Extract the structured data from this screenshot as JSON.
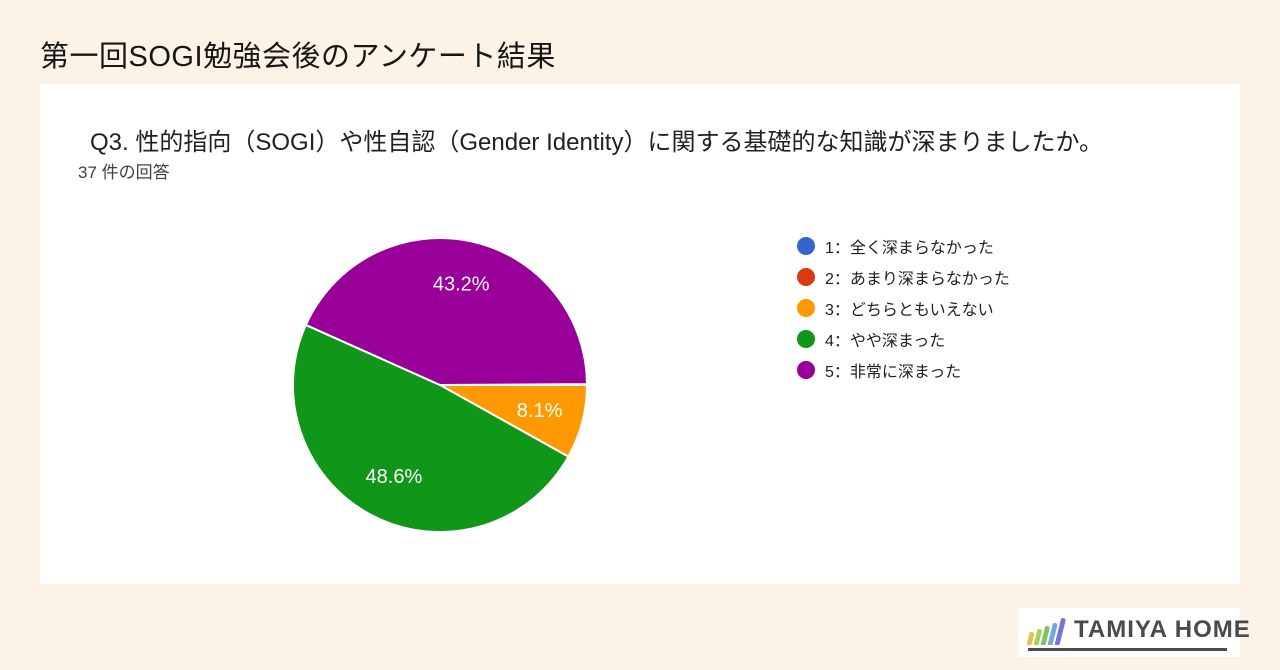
{
  "page": {
    "title": "第一回SOGI勉強会後のアンケート結果",
    "background_color": "#fcf3e6"
  },
  "chart_data": {
    "type": "pie",
    "title": "Q3. 性的指向（SOGI）や性自認（Gender Identity）に関する基礎的な知識が深まりましたか。",
    "subtitle": "37 件の回答",
    "total_responses_shown": "37",
    "categories": [
      "1：全く深まらなかった",
      "2：あまり深まらなかった",
      "3：どちらともいえない",
      "4：やや深まった",
      "5：非常に深まった"
    ],
    "values_percent": [
      0,
      0,
      8.1,
      48.6,
      43.2
    ],
    "slice_labels_shown": [
      "8.1%",
      "48.6%",
      "43.2%"
    ],
    "colors": [
      "#3366cc",
      "#dc3912",
      "#ff9900",
      "#109618",
      "#990099"
    ],
    "slice_border_color": "#ffffff",
    "label_color": "#ffffff",
    "start_angle_deg": 90,
    "direction": "clockwise",
    "legend_position": "right"
  },
  "logo": {
    "text": "TAMIYA HOME",
    "bar_colors": [
      "#e0c050",
      "#b0cc52",
      "#7cc466",
      "#72aadc",
      "#7f72d6"
    ],
    "text_color": "#4a4a4a",
    "underline_color": "#4d4d4d"
  }
}
